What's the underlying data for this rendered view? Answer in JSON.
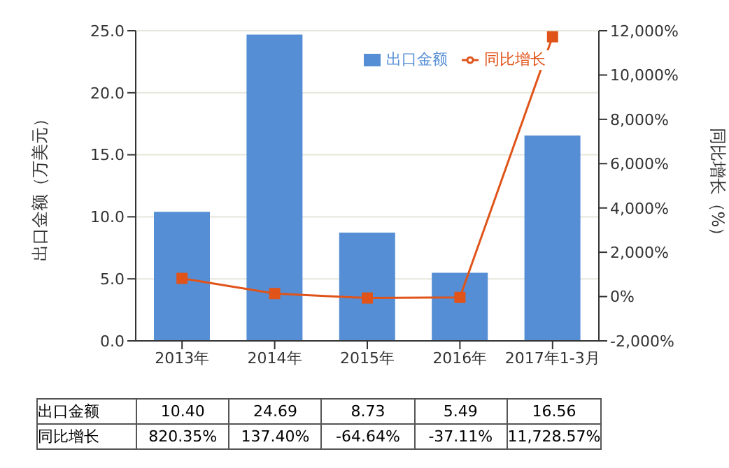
{
  "chart_data": {
    "type": "bar",
    "categories": [
      "2013年",
      "2014年",
      "2015年",
      "2016年",
      "2017年1-3月"
    ],
    "series": [
      {
        "name": "出口金额",
        "color": "#558ed5",
        "values": [
          10.4,
          24.69,
          8.73,
          5.49,
          16.56
        ],
        "value_labels": [
          "10.40",
          "24.69",
          "8.73",
          "5.49",
          "16.56"
        ]
      },
      {
        "name": "同比增长",
        "type": "line",
        "axis": "y2",
        "color": "#e0541a",
        "values": [
          820.35,
          137.4,
          -64.64,
          -37.11,
          11728.57
        ],
        "value_labels": [
          "820.35%",
          "137.40%",
          "-64.64%",
          "-37.11%",
          "11,728.57%"
        ]
      }
    ],
    "ylabel": "出口金额（万美元）",
    "y2label": "同比增长（%）",
    "ylim": [
      0,
      25
    ],
    "yticks": [
      {
        "value": 0,
        "label": "0.0"
      },
      {
        "value": 5,
        "label": "5.0"
      },
      {
        "value": 10,
        "label": "10.0"
      },
      {
        "value": 15,
        "label": "15.0"
      },
      {
        "value": 20,
        "label": "20.0"
      },
      {
        "value": 25,
        "label": "25.0"
      }
    ],
    "y2lim": [
      -2000,
      12000
    ],
    "y2ticks": [
      {
        "value": -2000,
        "label": "-2,000%"
      },
      {
        "value": 0,
        "label": "0%"
      },
      {
        "value": 2000,
        "label": "2,000%"
      },
      {
        "value": 4000,
        "label": "4,000%"
      },
      {
        "value": 6000,
        "label": "6,000%"
      },
      {
        "value": 8000,
        "label": "8,000%"
      },
      {
        "value": 10000,
        "label": "10,000%"
      },
      {
        "value": 12000,
        "label": "12,000%"
      }
    ],
    "grid": "y",
    "legend": "top right",
    "marker": "square",
    "line_style": "solid"
  }
}
